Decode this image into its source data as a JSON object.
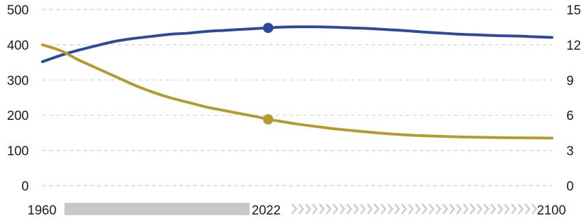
{
  "chart_data": {
    "type": "line",
    "x_range": [
      1960,
      2100
    ],
    "y_left": {
      "range": [
        0,
        500
      ],
      "ticks": [
        "0",
        "100",
        "200",
        "300",
        "400",
        "500"
      ]
    },
    "y_right": {
      "range": [
        0,
        15
      ],
      "ticks": [
        "0",
        "3",
        "6",
        "9",
        "12",
        "15"
      ]
    },
    "x_labels": {
      "start": "1960",
      "marker": "2022",
      "end": "2100"
    },
    "marker_year": 2022,
    "grid": true,
    "series": [
      {
        "axis": "left",
        "color": "#2b4a9c",
        "points": [
          [
            1960,
            352
          ],
          [
            1965,
            370
          ],
          [
            1970,
            385
          ],
          [
            1975,
            398
          ],
          [
            1980,
            410
          ],
          [
            1985,
            418
          ],
          [
            1990,
            424
          ],
          [
            1995,
            430
          ],
          [
            2000,
            433
          ],
          [
            2005,
            438
          ],
          [
            2010,
            441
          ],
          [
            2015,
            444
          ],
          [
            2020,
            447
          ],
          [
            2022,
            448
          ],
          [
            2025,
            450
          ],
          [
            2030,
            451
          ],
          [
            2035,
            451
          ],
          [
            2040,
            450
          ],
          [
            2045,
            448
          ],
          [
            2050,
            446
          ],
          [
            2055,
            443
          ],
          [
            2060,
            440
          ],
          [
            2065,
            436
          ],
          [
            2070,
            433
          ],
          [
            2075,
            430
          ],
          [
            2080,
            428
          ],
          [
            2085,
            426
          ],
          [
            2090,
            425
          ],
          [
            2095,
            423
          ],
          [
            2100,
            421
          ]
        ]
      },
      {
        "axis": "right",
        "color": "#b59a2d",
        "points": [
          [
            1960,
            12.0
          ],
          [
            1965,
            11.5
          ],
          [
            1970,
            10.7
          ],
          [
            1975,
            10.0
          ],
          [
            1980,
            9.3
          ],
          [
            1985,
            8.6
          ],
          [
            1990,
            8.0
          ],
          [
            1995,
            7.5
          ],
          [
            2000,
            7.1
          ],
          [
            2005,
            6.7
          ],
          [
            2010,
            6.4
          ],
          [
            2015,
            6.1
          ],
          [
            2020,
            5.8
          ],
          [
            2022,
            5.65
          ],
          [
            2025,
            5.5
          ],
          [
            2030,
            5.25
          ],
          [
            2035,
            5.05
          ],
          [
            2040,
            4.85
          ],
          [
            2045,
            4.7
          ],
          [
            2050,
            4.55
          ],
          [
            2055,
            4.42
          ],
          [
            2060,
            4.32
          ],
          [
            2065,
            4.25
          ],
          [
            2070,
            4.2
          ],
          [
            2075,
            4.15
          ],
          [
            2080,
            4.12
          ],
          [
            2085,
            4.1
          ],
          [
            2090,
            4.08
          ],
          [
            2095,
            4.07
          ],
          [
            2100,
            4.06
          ]
        ]
      }
    ]
  }
}
